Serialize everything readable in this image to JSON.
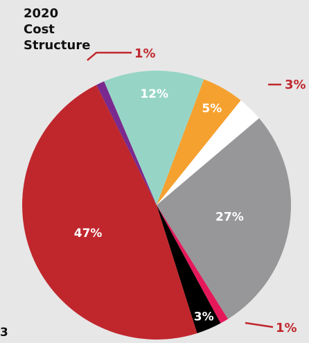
{
  "title_lines": [
    "2020",
    "Cost",
    "Structure"
  ],
  "page_number": "3",
  "colors": {
    "background": "#e7e7e7",
    "callout": "#c0272d"
  },
  "chart_data": {
    "type": "pie",
    "title": "2020 Cost Structure",
    "slices": [
      {
        "label": "12%",
        "value": 12,
        "color": "#96d5c6"
      },
      {
        "label": "5%",
        "value": 5,
        "color": "#f5a12f"
      },
      {
        "label": "3%",
        "value": 3,
        "color": "#ffffff"
      },
      {
        "label": "27%",
        "value": 27,
        "color": "#97979a"
      },
      {
        "label": "1%",
        "value": 1,
        "color": "#e5195a"
      },
      {
        "label": "3%",
        "value": 3,
        "color": "#000000"
      },
      {
        "label": "47%",
        "value": 47,
        "color": "#c0272d"
      },
      {
        "label": "1%",
        "value": 1,
        "color": "#7a2a8e"
      }
    ]
  }
}
